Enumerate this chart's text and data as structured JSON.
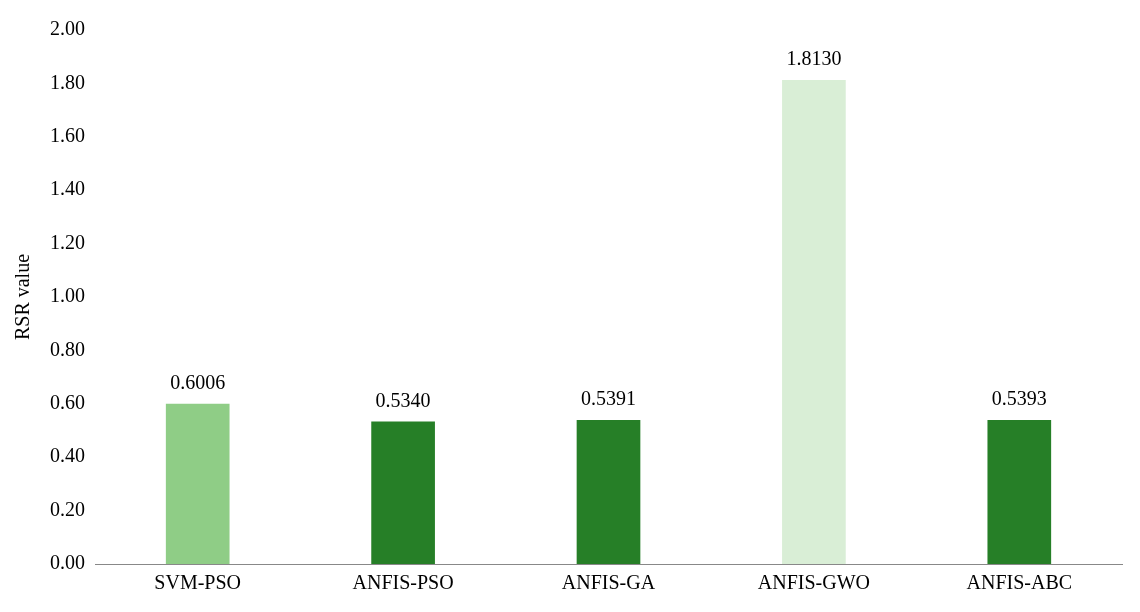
{
  "chart_data": {
    "type": "bar",
    "ylabel": "RSR value",
    "categories": [
      "SVM-PSO",
      "ANFIS-PSO",
      "ANFIS-GA",
      "ANFIS-GWO",
      "ANFIS-ABC"
    ],
    "values": [
      0.6006,
      0.534,
      0.5391,
      1.813,
      0.5393
    ],
    "value_labels": [
      "0.6006",
      "0.5340",
      "0.5391",
      "1.8130",
      "0.5393"
    ],
    "colors": [
      "#8fcd86",
      "#267f27",
      "#267f27",
      "#d9eed6",
      "#267f27"
    ],
    "ylim": [
      0,
      2
    ],
    "yticks": [
      {
        "value": 0,
        "label": "0.00"
      },
      {
        "value": 0.2,
        "label": "0.20"
      },
      {
        "value": 0.4,
        "label": "0.40"
      },
      {
        "value": 0.6,
        "label": "0.60"
      },
      {
        "value": 0.8,
        "label": "0.80"
      },
      {
        "value": 1,
        "label": "1.00"
      },
      {
        "value": 1.2,
        "label": "1.20"
      },
      {
        "value": 1.4,
        "label": "1.40"
      },
      {
        "value": 1.6,
        "label": "1.60"
      },
      {
        "value": 1.8,
        "label": "1.80"
      },
      {
        "value": 2,
        "label": "2.00"
      }
    ],
    "grid": false,
    "legend": false
  }
}
